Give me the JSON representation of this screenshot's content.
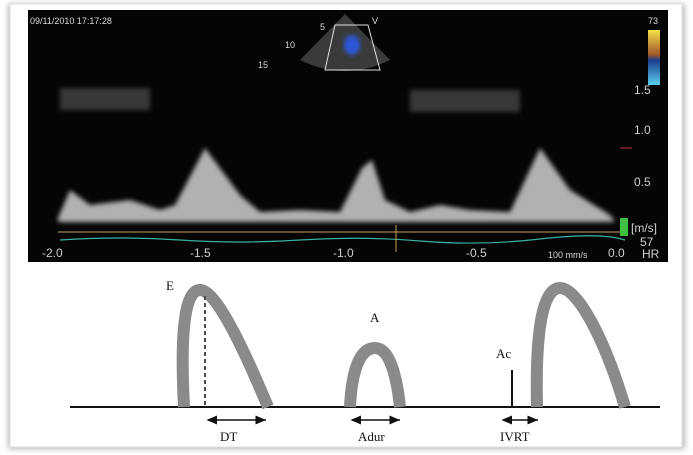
{
  "monitor": {
    "timestamp": "09/11/2010 17:17:28",
    "probe_label": "V",
    "depth_marks": [
      "5",
      "10",
      "15"
    ],
    "color_scale_top": "73",
    "velocity_ticks": [
      "1.5",
      "1.0",
      "0.5"
    ],
    "velocity_unit": "[m/s]",
    "time_ticks": [
      "-2.0",
      "-1.5",
      "-1.0",
      "-0.5",
      "0.0"
    ],
    "sweep_speed": "100 mm/s",
    "heart_rate": "57",
    "heart_rate_label": "HR"
  },
  "schematic": {
    "e_label": "E",
    "a_label": "A",
    "ac_label": "Ac",
    "dt_label": "DT",
    "adur_label": "Adur",
    "ivrt_label": "IVRT"
  }
}
